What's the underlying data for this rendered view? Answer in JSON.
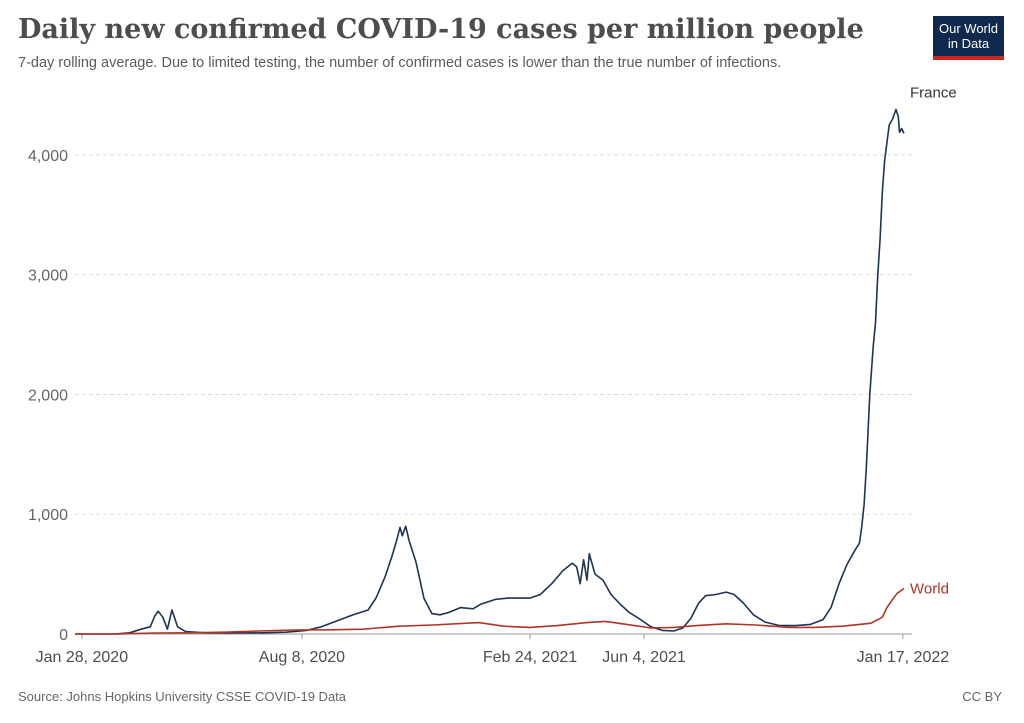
{
  "header": {
    "title": "Daily new confirmed COVID-19 cases per million people",
    "subtitle": "7-day rolling average. Due to limited testing, the number of confirmed cases is lower than the true number of infections."
  },
  "logo": {
    "line1": "Our World",
    "line2": "in Data"
  },
  "footer": {
    "source": "Source: Johns Hopkins University CSSE COVID-19 Data",
    "license": "CC BY"
  },
  "colors": {
    "france": "#1f3455",
    "world": "#b13526",
    "grid": "#dddddd",
    "axis": "#999999"
  },
  "chart_data": {
    "type": "line",
    "x_axis": {
      "type": "date",
      "range": [
        "2020-01-22",
        "2022-01-25"
      ]
    },
    "ylim": [
      0,
      4400
    ],
    "yticks": [
      {
        "value": 0,
        "label": "0"
      },
      {
        "value": 1000,
        "label": "1,000"
      },
      {
        "value": 2000,
        "label": "2,000"
      },
      {
        "value": 3000,
        "label": "3,000"
      },
      {
        "value": 4000,
        "label": "4,000"
      }
    ],
    "xticks": [
      {
        "date": "2020-01-28",
        "label": "Jan 28, 2020"
      },
      {
        "date": "2020-08-08",
        "label": "Aug 8, 2020"
      },
      {
        "date": "2021-02-24",
        "label": "Feb 24, 2021"
      },
      {
        "date": "2021-06-04",
        "label": "Jun 4, 2021"
      },
      {
        "date": "2022-01-17",
        "label": "Jan 17, 2022"
      }
    ],
    "grid": "horizontal dashed",
    "legend": "inline labels at line ends",
    "series": [
      {
        "name": "France",
        "points": [
          [
            "2020-01-22",
            0
          ],
          [
            "2020-02-26",
            0
          ],
          [
            "2020-03-10",
            10
          ],
          [
            "2020-03-20",
            40
          ],
          [
            "2020-03-28",
            60
          ],
          [
            "2020-04-01",
            150
          ],
          [
            "2020-04-04",
            190
          ],
          [
            "2020-04-08",
            140
          ],
          [
            "2020-04-12",
            40
          ],
          [
            "2020-04-16",
            200
          ],
          [
            "2020-04-21",
            60
          ],
          [
            "2020-04-28",
            20
          ],
          [
            "2020-05-15",
            10
          ],
          [
            "2020-06-10",
            8
          ],
          [
            "2020-07-05",
            10
          ],
          [
            "2020-07-25",
            15
          ],
          [
            "2020-08-12",
            30
          ],
          [
            "2020-08-25",
            60
          ],
          [
            "2020-09-08",
            110
          ],
          [
            "2020-09-22",
            160
          ],
          [
            "2020-10-05",
            200
          ],
          [
            "2020-10-12",
            300
          ],
          [
            "2020-10-20",
            480
          ],
          [
            "2020-10-26",
            650
          ],
          [
            "2020-10-30",
            780
          ],
          [
            "2020-11-02",
            890
          ],
          [
            "2020-11-04",
            820
          ],
          [
            "2020-11-07",
            900
          ],
          [
            "2020-11-10",
            780
          ],
          [
            "2020-11-16",
            600
          ],
          [
            "2020-11-23",
            300
          ],
          [
            "2020-11-30",
            170
          ],
          [
            "2020-12-07",
            160
          ],
          [
            "2020-12-15",
            180
          ],
          [
            "2020-12-25",
            220
          ],
          [
            "2021-01-05",
            210
          ],
          [
            "2021-01-12",
            250
          ],
          [
            "2021-01-25",
            290
          ],
          [
            "2021-02-05",
            300
          ],
          [
            "2021-02-15",
            300
          ],
          [
            "2021-02-24",
            300
          ],
          [
            "2021-03-05",
            330
          ],
          [
            "2021-03-15",
            420
          ],
          [
            "2021-03-25",
            530
          ],
          [
            "2021-04-02",
            590
          ],
          [
            "2021-04-06",
            560
          ],
          [
            "2021-04-09",
            420
          ],
          [
            "2021-04-12",
            620
          ],
          [
            "2021-04-15",
            450
          ],
          [
            "2021-04-17",
            670
          ],
          [
            "2021-04-22",
            500
          ],
          [
            "2021-04-29",
            450
          ],
          [
            "2021-05-06",
            330
          ],
          [
            "2021-05-14",
            250
          ],
          [
            "2021-05-22",
            180
          ],
          [
            "2021-06-01",
            120
          ],
          [
            "2021-06-10",
            60
          ],
          [
            "2021-06-20",
            30
          ],
          [
            "2021-06-30",
            25
          ],
          [
            "2021-07-08",
            50
          ],
          [
            "2021-07-15",
            130
          ],
          [
            "2021-07-22",
            260
          ],
          [
            "2021-07-28",
            320
          ],
          [
            "2021-08-06",
            330
          ],
          [
            "2021-08-15",
            350
          ],
          [
            "2021-08-22",
            330
          ],
          [
            "2021-08-30",
            260
          ],
          [
            "2021-09-08",
            160
          ],
          [
            "2021-09-18",
            100
          ],
          [
            "2021-10-01",
            70
          ],
          [
            "2021-10-15",
            70
          ],
          [
            "2021-10-28",
            80
          ],
          [
            "2021-11-08",
            120
          ],
          [
            "2021-11-15",
            220
          ],
          [
            "2021-11-22",
            420
          ],
          [
            "2021-11-29",
            580
          ],
          [
            "2021-12-06",
            700
          ],
          [
            "2021-12-10",
            760
          ],
          [
            "2021-12-12",
            900
          ],
          [
            "2021-12-14",
            1080
          ],
          [
            "2021-12-16",
            1400
          ],
          [
            "2021-12-19",
            2000
          ],
          [
            "2021-12-22",
            2400
          ],
          [
            "2021-12-24",
            2600
          ],
          [
            "2021-12-26",
            3000
          ],
          [
            "2021-12-28",
            3300
          ],
          [
            "2021-12-30",
            3700
          ],
          [
            "2022-01-01",
            3950
          ],
          [
            "2022-01-03",
            4100
          ],
          [
            "2022-01-05",
            4250
          ],
          [
            "2022-01-08",
            4300
          ],
          [
            "2022-01-11",
            4380
          ],
          [
            "2022-01-13",
            4320
          ],
          [
            "2022-01-14",
            4190
          ],
          [
            "2022-01-16",
            4220
          ],
          [
            "2022-01-18",
            4180
          ]
        ]
      },
      {
        "name": "World",
        "points": [
          [
            "2020-01-22",
            0
          ],
          [
            "2020-03-01",
            1
          ],
          [
            "2020-04-01",
            8
          ],
          [
            "2020-05-01",
            10
          ],
          [
            "2020-06-01",
            15
          ],
          [
            "2020-07-01",
            25
          ],
          [
            "2020-08-01",
            33
          ],
          [
            "2020-09-01",
            35
          ],
          [
            "2020-10-01",
            40
          ],
          [
            "2020-11-01",
            65
          ],
          [
            "2020-12-01",
            75
          ],
          [
            "2021-01-10",
            95
          ],
          [
            "2021-02-01",
            65
          ],
          [
            "2021-02-24",
            55
          ],
          [
            "2021-03-20",
            70
          ],
          [
            "2021-04-15",
            95
          ],
          [
            "2021-05-01",
            105
          ],
          [
            "2021-05-20",
            80
          ],
          [
            "2021-06-10",
            50
          ],
          [
            "2021-07-01",
            55
          ],
          [
            "2021-07-20",
            70
          ],
          [
            "2021-08-15",
            85
          ],
          [
            "2021-09-10",
            75
          ],
          [
            "2021-10-10",
            55
          ],
          [
            "2021-11-01",
            55
          ],
          [
            "2021-11-25",
            65
          ],
          [
            "2021-12-10",
            80
          ],
          [
            "2021-12-20",
            90
          ],
          [
            "2021-12-30",
            140
          ],
          [
            "2022-01-03",
            220
          ],
          [
            "2022-01-08",
            290
          ],
          [
            "2022-01-12",
            340
          ],
          [
            "2022-01-18",
            380
          ]
        ]
      }
    ]
  }
}
